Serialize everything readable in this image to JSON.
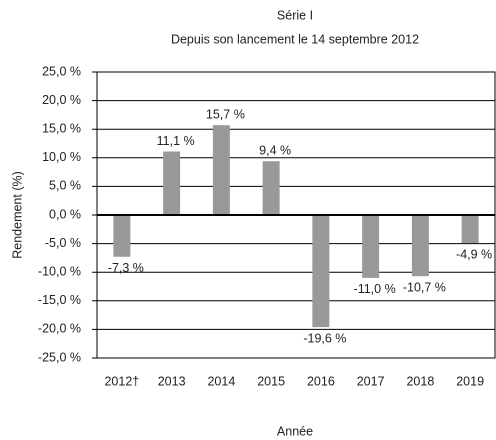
{
  "chart_data": {
    "type": "bar",
    "title": "Série I",
    "subtitle": "Depuis son lancement le 14 septembre 2012",
    "x_label": "Année",
    "y_label": "Rendement (%)",
    "categories": [
      "2012†",
      "2013",
      "2014",
      "2015",
      "2016",
      "2017",
      "2018",
      "2019"
    ],
    "values": [
      -7.3,
      11.1,
      15.7,
      9.4,
      -19.6,
      -11.0,
      -10.7,
      -4.9
    ],
    "value_labels": [
      "-7,3 %",
      "11,1 %",
      "15,7 %",
      "9,4 %",
      "-19,6 %",
      "-11,0 %",
      "-10,7 %",
      "-4,9 %"
    ],
    "color": "#999999",
    "ylim": [
      -25,
      25
    ],
    "yticks": [
      {
        "value": 25,
        "label": "25,0 %"
      },
      {
        "value": 20,
        "label": "20,0 %"
      },
      {
        "value": 15,
        "label": "15,0 %"
      },
      {
        "value": 10,
        "label": "10,0 %"
      },
      {
        "value": 5,
        "label": "5,0 %"
      },
      {
        "value": 0,
        "label": "0,0 %"
      },
      {
        "value": -5,
        "label": "-5,0 %"
      },
      {
        "value": -10,
        "label": "-10,0 %"
      },
      {
        "value": -15,
        "label": "-15,0 %"
      },
      {
        "value": -20,
        "label": "-20,0 %"
      },
      {
        "value": -25,
        "label": "-25,0 %"
      }
    ],
    "grid": true
  }
}
